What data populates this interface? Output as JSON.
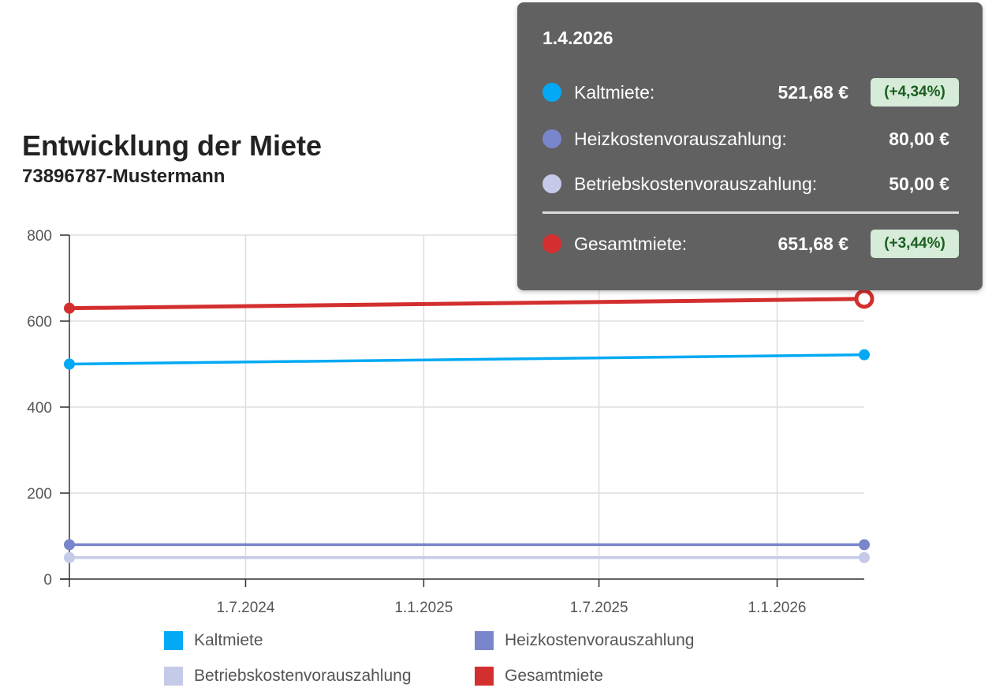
{
  "chart_data": {
    "type": "line",
    "title": "Entwicklung der Miete",
    "subtitle": "73896787-Mustermann",
    "x": [
      "2024-01-01",
      "2026-04-01"
    ],
    "x_ticks": [
      {
        "date": "2024-07-01",
        "label": "1.7.2024"
      },
      {
        "date": "2025-01-01",
        "label": "1.1.2025"
      },
      {
        "date": "2025-07-01",
        "label": "1.7.2025"
      },
      {
        "date": "2026-01-01",
        "label": "1.1.2026"
      }
    ],
    "xlim": [
      "2024-01-01",
      "2026-04-01"
    ],
    "ylim": [
      0,
      800
    ],
    "y_ticks": [
      0,
      200,
      400,
      600,
      800
    ],
    "grid": true,
    "legend_position": "bottom",
    "series": [
      {
        "name": "Kaltmiete",
        "color": "#03a9f4",
        "values": [
          500,
          521.68
        ]
      },
      {
        "name": "Heizkostenvorauszahlung",
        "color": "#7986cb",
        "values": [
          80,
          80
        ]
      },
      {
        "name": "Betriebskostenvorauszahlung",
        "color": "#c5cae9",
        "values": [
          50,
          50
        ]
      },
      {
        "name": "Gesamtmiete",
        "color": "#d32f2f",
        "values": [
          630,
          651.68
        ]
      }
    ]
  },
  "tooltip": {
    "date": "1.4.2026",
    "rows": [
      {
        "label": "Kaltmiete:",
        "value": "521,68 €",
        "change": "(+4,34%)"
      },
      {
        "label": "Heizkostenvorauszahlung:",
        "value": "80,00 €"
      },
      {
        "label": "Betriebskostenvorauszahlung:",
        "value": "50,00 €"
      },
      {
        "label": "Gesamtmiete:",
        "value": "651,68 €",
        "change": "(+3,44%)"
      }
    ]
  }
}
